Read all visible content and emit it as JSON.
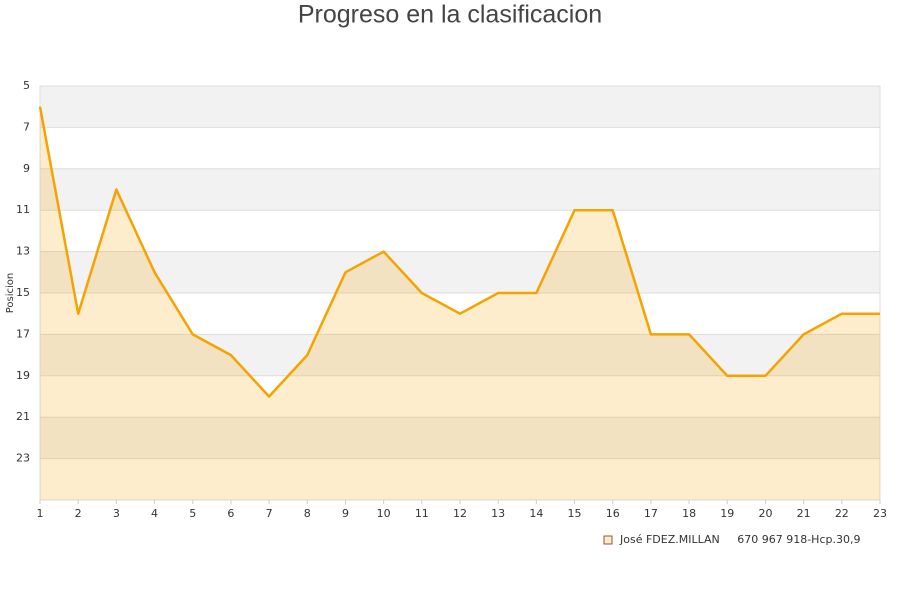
{
  "chart_data": {
    "type": "line",
    "title": "Progreso en la clasificacion",
    "y_label": "Posicion",
    "x": [
      1,
      2,
      3,
      4,
      5,
      6,
      7,
      8,
      9,
      10,
      11,
      12,
      13,
      14,
      15,
      16,
      17,
      18,
      19,
      20,
      21,
      22,
      23
    ],
    "series": [
      {
        "name": "José FDEZ.MILLAN     670 967 918-Hcp.30,9",
        "color": "#f5a300",
        "values": [
          6,
          16,
          10,
          14,
          17,
          18,
          20,
          18,
          14,
          13,
          15,
          16,
          15,
          15,
          11,
          11,
          17,
          17,
          19,
          19,
          17,
          16,
          16
        ]
      }
    ],
    "xlim": [
      1,
      23
    ],
    "xticks": [
      1,
      2,
      3,
      4,
      5,
      6,
      7,
      8,
      9,
      10,
      11,
      12,
      13,
      14,
      15,
      16,
      17,
      18,
      19,
      20,
      21,
      22,
      23
    ],
    "ylim": [
      25,
      5
    ],
    "yticks": [
      5,
      7,
      9,
      11,
      13,
      15,
      17,
      19,
      21,
      23
    ],
    "grid": true,
    "legend": "bottom-right"
  }
}
